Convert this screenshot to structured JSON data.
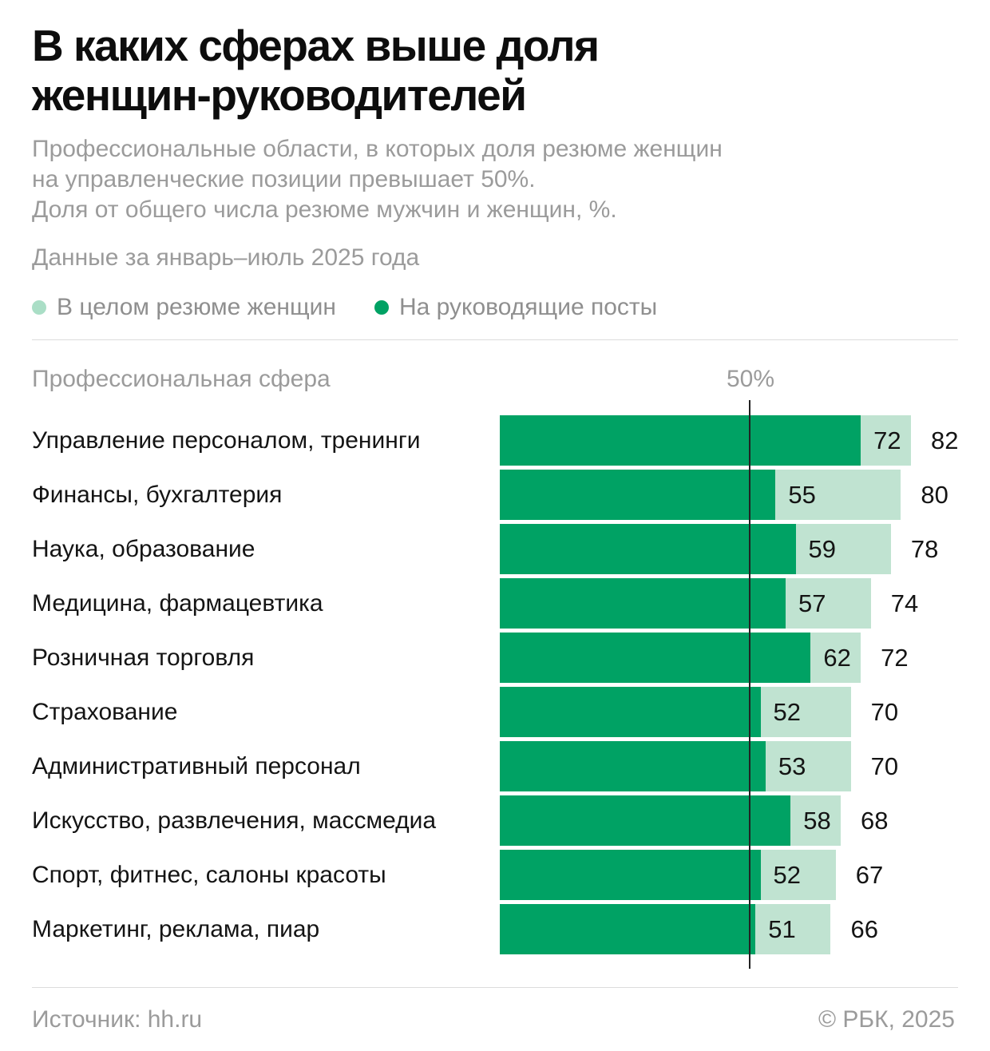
{
  "title_lines": [
    "В каких сферах выше доля",
    "женщин-руководителей"
  ],
  "subtitle_lines": [
    "Профессиональные области, в которых доля резюме женщин",
    "на управленческие позиции превышает 50%.",
    "Доля от общего числа резюме мужчин и женщин, %."
  ],
  "period_note": "Данные за январь–июль 2025 года",
  "legend": {
    "items": [
      {
        "label": "В целом резюме женщин",
        "color": "#aadec6"
      },
      {
        "label": "На руководящие посты",
        "color": "#00a264"
      }
    ]
  },
  "chart_data": {
    "type": "bar",
    "orientation": "horizontal",
    "column_header": "Профессиональная сфера",
    "threshold_label": "50%",
    "threshold_value": 50,
    "axis_range_percent": [
      0,
      100
    ],
    "unit": "%",
    "categories": [
      "Управление персоналом, тренинги",
      "Финансы, бухгалтерия",
      "Наука, образование",
      "Медицина, фармацевтика",
      "Розничная торговля",
      "Страхование",
      "Административный персонал",
      "Искусство, развлечения, массмедиа",
      "Спорт, фитнес, салоны красоты",
      "Маркетинг, реклама, пиар"
    ],
    "series": [
      {
        "name": "В целом резюме женщин",
        "color": "#c0e3d1",
        "values": [
          82,
          80,
          78,
          74,
          72,
          70,
          70,
          68,
          67,
          66
        ]
      },
      {
        "name": "На руководящие посты",
        "color": "#00a264",
        "values": [
          72,
          55,
          59,
          57,
          62,
          52,
          53,
          58,
          52,
          51
        ]
      }
    ]
  },
  "footer": {
    "source": "Источник: hh.ru",
    "copyright": "© РБК, 2025"
  },
  "colors": {
    "title": "#0d0d0d",
    "muted_text": "#9b9b9b",
    "label_text": "#141414",
    "threshold_line": "#222222",
    "divider": "#dcdcdc",
    "background": "#ffffff"
  }
}
